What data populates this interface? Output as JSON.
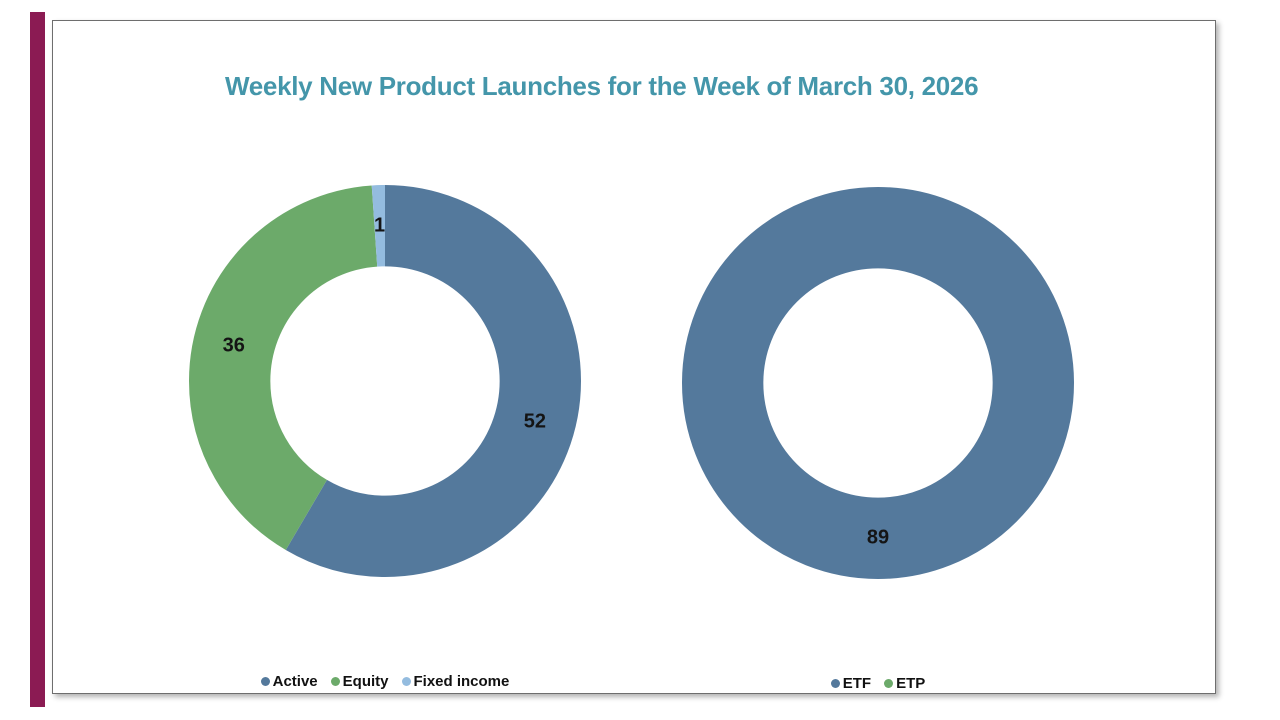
{
  "window": {
    "background": "#ffffff"
  },
  "slide": {
    "background": "#ffffff",
    "border_color": "#6e6e6e",
    "accent_bar_color": "#8b1b53"
  },
  "title": {
    "text": "Weekly New Product Launches for the Week of March 30, 2026",
    "color": "#4496aa"
  },
  "chart_data": [
    {
      "type": "pie",
      "subtype": "donut",
      "name": "launches-by-strategy",
      "categories": [
        "Active",
        "Equity",
        "Fixed income"
      ],
      "values": [
        52,
        36,
        1
      ],
      "colors": [
        "#54799c",
        "#6caa6a",
        "#94bcdf"
      ],
      "total": 89,
      "start_angle_deg": 0,
      "direction": "clockwise",
      "data_labels_visible": true,
      "label_color": "#141414",
      "legend_position": "bottom",
      "hole_ratio": 0.585
    },
    {
      "type": "pie",
      "subtype": "donut",
      "name": "launches-by-wrapper",
      "categories": [
        "ETF",
        "ETP"
      ],
      "values": [
        89,
        0
      ],
      "colors": [
        "#54799c",
        "#6caa6a"
      ],
      "total": 89,
      "start_angle_deg": 0,
      "direction": "clockwise",
      "data_labels_visible": true,
      "label_color": "#141414",
      "legend_position": "bottom",
      "hole_ratio": 0.585
    }
  ]
}
